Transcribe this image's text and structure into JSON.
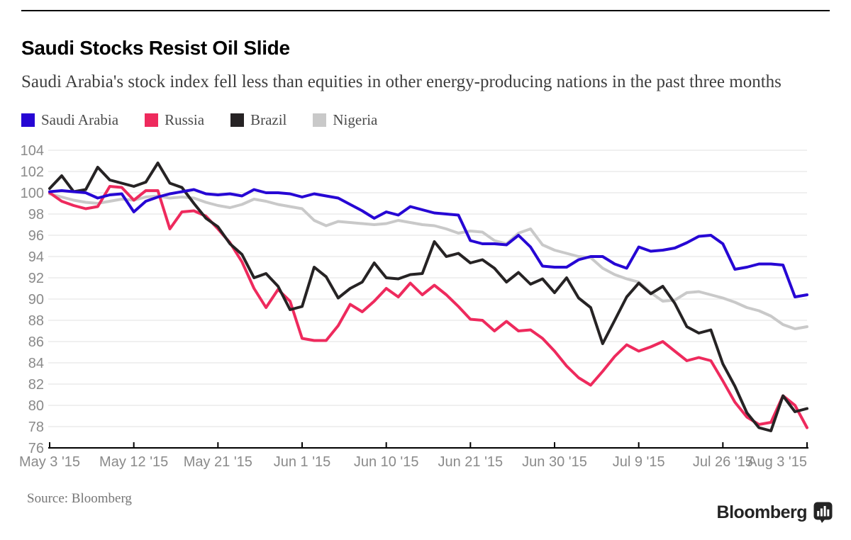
{
  "header": {
    "title": "Saudi Stocks Resist Oil Slide",
    "subtitle": "Saudi Arabia's stock index fell less than equities in other energy-producing nations in the past three months"
  },
  "footer": {
    "source": "Source: Bloomberg",
    "brand": "Bloomberg",
    "brand_icon": "bar-chart-icon"
  },
  "chart_data": {
    "type": "line",
    "title": "Saudi Stocks Resist Oil Slide",
    "xlabel": "",
    "ylabel": "",
    "ylim": [
      76,
      104
    ],
    "y_ticks": [
      76,
      78,
      80,
      82,
      84,
      86,
      88,
      90,
      92,
      94,
      96,
      98,
      100,
      102,
      104
    ],
    "x_tick_labels": [
      "May 3 '15",
      "May 12 '15",
      "May 21 '15",
      "Jun 1 '15",
      "Jun 10 '15",
      "Jun 21 '15",
      "Jun 30 '15",
      "Jul 9 '15",
      "Jul 26 '15",
      "Aug 3 '15"
    ],
    "grid": true,
    "legend_position": "top",
    "grid_color": "#ebebeb",
    "axis_color": "#000000",
    "tick_label_color": "#8a8a8a",
    "series": [
      {
        "name": "Nigeria",
        "color": "#c9c9c9",
        "values": [
          99.9,
          99.6,
          99.3,
          99.1,
          99.0,
          99.2,
          99.4,
          99.3,
          99.6,
          99.7,
          99.5,
          99.6,
          99.5,
          99.1,
          98.8,
          98.6,
          98.9,
          99.4,
          99.2,
          98.9,
          98.7,
          98.5,
          97.4,
          96.9,
          97.3,
          97.2,
          97.1,
          97.0,
          97.1,
          97.4,
          97.2,
          97.0,
          96.9,
          96.6,
          96.2,
          96.4,
          96.3,
          95.5,
          95.2,
          96.2,
          96.6,
          95.1,
          94.6,
          94.3,
          94.0,
          93.9,
          92.9,
          92.3,
          91.9,
          91.6,
          90.6,
          89.8,
          89.9,
          90.6,
          90.7,
          90.4,
          90.1,
          89.7,
          89.2,
          88.9,
          88.4,
          87.6,
          87.2,
          87.4
        ]
      },
      {
        "name": "Russia",
        "color": "#ee2a5d",
        "values": [
          100.0,
          99.2,
          98.8,
          98.5,
          98.7,
          100.6,
          100.5,
          99.3,
          100.2,
          100.2,
          96.6,
          98.2,
          98.3,
          97.8,
          96.6,
          95.3,
          93.5,
          91.0,
          89.2,
          90.9,
          89.8,
          86.3,
          86.1,
          86.1,
          87.5,
          89.5,
          88.8,
          89.8,
          91.0,
          90.2,
          91.5,
          90.4,
          91.3,
          90.4,
          89.3,
          88.1,
          88.0,
          87.0,
          87.9,
          87.0,
          87.1,
          86.3,
          85.1,
          83.7,
          82.6,
          81.9,
          83.2,
          84.6,
          85.7,
          85.1,
          85.5,
          86.0,
          85.1,
          84.2,
          84.5,
          84.2,
          82.3,
          80.3,
          78.9,
          78.2,
          78.4,
          80.9,
          80.0,
          77.9
        ]
      },
      {
        "name": "Brazil",
        "color": "#262324",
        "values": [
          100.4,
          101.6,
          100.1,
          100.3,
          102.4,
          101.2,
          100.9,
          100.6,
          101.0,
          102.8,
          100.9,
          100.5,
          99.0,
          97.6,
          96.8,
          95.2,
          94.2,
          92.0,
          92.4,
          91.2,
          89.0,
          89.3,
          93.0,
          92.1,
          90.1,
          91.0,
          91.6,
          93.4,
          92.0,
          91.9,
          92.3,
          92.4,
          95.4,
          94.0,
          94.3,
          93.4,
          93.7,
          92.9,
          91.6,
          92.5,
          91.4,
          91.9,
          90.6,
          92.0,
          90.1,
          89.2,
          85.8,
          88.0,
          90.2,
          91.5,
          90.5,
          91.2,
          89.6,
          87.4,
          86.8,
          87.1,
          83.9,
          81.8,
          79.3,
          77.9,
          77.6,
          80.9,
          79.4,
          79.7
        ]
      },
      {
        "name": "Saudi Arabia",
        "color": "#2606d4",
        "values": [
          100.1,
          100.2,
          100.1,
          100.0,
          99.5,
          99.8,
          99.9,
          98.2,
          99.2,
          99.6,
          99.9,
          100.1,
          100.3,
          99.9,
          99.8,
          99.9,
          99.7,
          100.3,
          100.0,
          100.0,
          99.9,
          99.6,
          99.9,
          99.7,
          99.5,
          98.9,
          98.3,
          97.6,
          98.2,
          97.9,
          98.7,
          98.4,
          98.1,
          98.0,
          97.9,
          95.5,
          95.2,
          95.2,
          95.1,
          96.0,
          94.9,
          93.1,
          93.0,
          93.0,
          93.7,
          94.0,
          94.0,
          93.3,
          92.9,
          94.9,
          94.5,
          94.6,
          94.8,
          95.3,
          95.9,
          96.0,
          95.2,
          92.8,
          93.0,
          93.3,
          93.3,
          93.2,
          90.2,
          90.4
        ]
      }
    ],
    "legend_order": [
      "Saudi Arabia",
      "Russia",
      "Brazil",
      "Nigeria"
    ]
  }
}
